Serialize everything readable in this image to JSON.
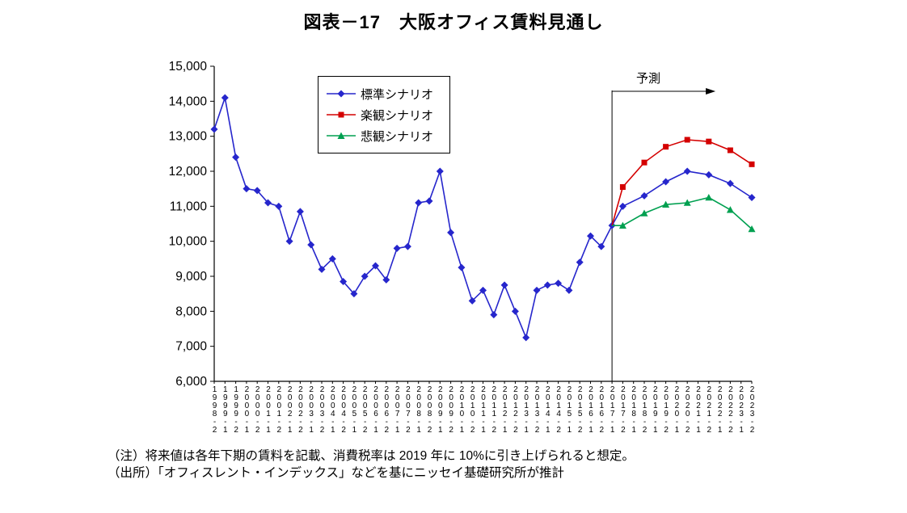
{
  "page": {
    "title": "図表－17　大阪オフィス賃料見通し"
  },
  "notes": {
    "line1": "（注）将来値は各年下期の賃料を記載、消費税率は 2019 年に 10%に引き上げられると想定。",
    "line2": "（出所）「オフィスレント・インデックス」などを基にニッセイ基礎研究所が推計"
  },
  "chart_data": {
    "type": "line",
    "title": "図表－17　大阪オフィス賃料見通し",
    "annotation": "予測",
    "grid": false,
    "legend_position": "top-left-inside",
    "ylim": [
      6000,
      15000
    ],
    "ytick_step": 1000,
    "ytick_labels": [
      "6,000",
      "7,000",
      "8,000",
      "9,000",
      "10,000",
      "11,000",
      "12,000",
      "13,000",
      "14,000",
      "15,000"
    ],
    "x_labels": [
      "1998-2",
      "1999-1",
      "1999-2",
      "2000-1",
      "2000-2",
      "2001-1",
      "2001-2",
      "2002-1",
      "2002-2",
      "2003-1",
      "2003-2",
      "2004-1",
      "2004-2",
      "2005-1",
      "2005-2",
      "2006-1",
      "2006-2",
      "2007-1",
      "2007-2",
      "2008-1",
      "2008-2",
      "2009-1",
      "2009-2",
      "2010-1",
      "2010-2",
      "2011-1",
      "2011-2",
      "2012-1",
      "2012-2",
      "2013-1",
      "2013-2",
      "2014-1",
      "2014-2",
      "2015-1",
      "2015-2",
      "2016-1",
      "2016-2",
      "2017-1",
      "2017-2",
      "2018-1",
      "2018-2",
      "2019-1",
      "2019-2",
      "2020-1",
      "2020-2",
      "2021-1",
      "2021-2",
      "2022-1",
      "2022-2",
      "2023-1",
      "2023-2"
    ],
    "forecast_boundary_x": "2017-1",
    "axis_color": "#000000",
    "series": [
      {
        "name": "標準シナリオ",
        "color": "#2626CC",
        "marker": "diamond",
        "points": [
          [
            "1998-2",
            13200
          ],
          [
            "1999-1",
            14100
          ],
          [
            "1999-2",
            12400
          ],
          [
            "2000-1",
            11500
          ],
          [
            "2000-2",
            11450
          ],
          [
            "2001-1",
            11100
          ],
          [
            "2001-2",
            11000
          ],
          [
            "2002-1",
            10000
          ],
          [
            "2002-2",
            10850
          ],
          [
            "2003-1",
            9900
          ],
          [
            "2003-2",
            9200
          ],
          [
            "2004-1",
            9500
          ],
          [
            "2004-2",
            8850
          ],
          [
            "2005-1",
            8500
          ],
          [
            "2005-2",
            9000
          ],
          [
            "2006-1",
            9300
          ],
          [
            "2006-2",
            8900
          ],
          [
            "2007-1",
            9800
          ],
          [
            "2007-2",
            9850
          ],
          [
            "2008-1",
            11100
          ],
          [
            "2008-2",
            11150
          ],
          [
            "2009-1",
            12000
          ],
          [
            "2009-2",
            10250
          ],
          [
            "2010-1",
            9250
          ],
          [
            "2010-2",
            8300
          ],
          [
            "2011-1",
            8600
          ],
          [
            "2011-2",
            7900
          ],
          [
            "2012-1",
            8750
          ],
          [
            "2012-2",
            8000
          ],
          [
            "2013-1",
            7250
          ],
          [
            "2013-2",
            8600
          ],
          [
            "2014-1",
            8750
          ],
          [
            "2014-2",
            8800
          ],
          [
            "2015-1",
            8600
          ],
          [
            "2015-2",
            9400
          ],
          [
            "2016-1",
            10150
          ],
          [
            "2016-2",
            9850
          ],
          [
            "2017-1",
            10450
          ],
          [
            "2017-2",
            11000
          ],
          [
            "2018-2",
            11300
          ],
          [
            "2019-2",
            11700
          ],
          [
            "2020-2",
            12000
          ],
          [
            "2021-2",
            11900
          ],
          [
            "2022-2",
            11650
          ],
          [
            "2023-2",
            11250
          ]
        ]
      },
      {
        "name": "楽観シナリオ",
        "color": "#D40000",
        "marker": "square",
        "no_marker_first": true,
        "points": [
          [
            "2017-1",
            10450
          ],
          [
            "2017-2",
            11550
          ],
          [
            "2018-2",
            12250
          ],
          [
            "2019-2",
            12700
          ],
          [
            "2020-2",
            12900
          ],
          [
            "2021-2",
            12850
          ],
          [
            "2022-2",
            12600
          ],
          [
            "2023-2",
            12200
          ]
        ]
      },
      {
        "name": "悲観シナリオ",
        "color": "#00A050",
        "marker": "triangle",
        "no_marker_first": true,
        "points": [
          [
            "2017-1",
            10450
          ],
          [
            "2017-2",
            10450
          ],
          [
            "2018-2",
            10800
          ],
          [
            "2019-2",
            11050
          ],
          [
            "2020-2",
            11100
          ],
          [
            "2021-2",
            11250
          ],
          [
            "2022-2",
            10900
          ],
          [
            "2023-2",
            10350
          ]
        ]
      }
    ]
  }
}
